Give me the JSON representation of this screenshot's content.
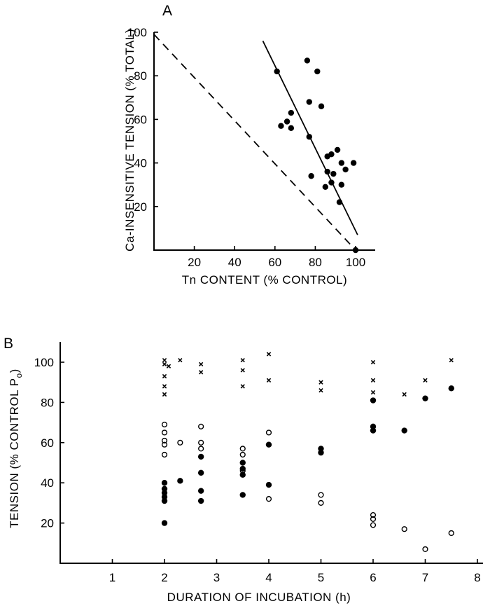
{
  "chart_data": [
    {
      "panel": "A",
      "type": "scatter",
      "xlabel": "Tn CONTENT (% CONTROL)",
      "ylabel": "Ca-INSENSITIVE TENSION (% TOTAL)",
      "xlim": [
        0,
        110
      ],
      "ylim": [
        0,
        100
      ],
      "xticks": [
        20,
        40,
        60,
        80,
        100
      ],
      "yticks": [
        20,
        40,
        60,
        80,
        100
      ],
      "points": [
        [
          61,
          82
        ],
        [
          63,
          57
        ],
        [
          66,
          59
        ],
        [
          68,
          63
        ],
        [
          68,
          56
        ],
        [
          76,
          87
        ],
        [
          77,
          68
        ],
        [
          77,
          52
        ],
        [
          78,
          34
        ],
        [
          81,
          82
        ],
        [
          83,
          66
        ],
        [
          85,
          29
        ],
        [
          86,
          36
        ],
        [
          86,
          43
        ],
        [
          88,
          44
        ],
        [
          88,
          31
        ],
        [
          89,
          35
        ],
        [
          91,
          46
        ],
        [
          92,
          22
        ],
        [
          93,
          30
        ],
        [
          93,
          40
        ],
        [
          95,
          37
        ],
        [
          99,
          40
        ],
        [
          100,
          0
        ]
      ],
      "lines": [
        {
          "style": "solid",
          "x": [
            54,
            101
          ],
          "y": [
            96,
            7
          ]
        },
        {
          "style": "dashed",
          "x": [
            0,
            100
          ],
          "y": [
            99,
            0
          ]
        }
      ]
    },
    {
      "panel": "B",
      "type": "scatter",
      "xlabel": "DURATION OF INCUBATION (h)",
      "ylabel": "TENSION (% CONTROL P",
      "ylabel_subscript": "o",
      "ylabel_close": ")",
      "xlim": [
        0,
        8
      ],
      "ylim": [
        0,
        105
      ],
      "xticks": [
        1,
        2,
        3,
        4,
        5,
        6,
        7,
        8
      ],
      "yticks": [
        20,
        40,
        60,
        80,
        100
      ],
      "series": [
        {
          "marker": "cross",
          "points": [
            [
              2,
              101
            ],
            [
              2,
              99
            ],
            [
              2.08,
              98
            ],
            [
              2,
              93
            ],
            [
              2,
              88
            ],
            [
              2,
              84
            ],
            [
              2.3,
              101
            ],
            [
              2.7,
              99
            ],
            [
              2.7,
              95
            ],
            [
              3.5,
              101
            ],
            [
              3.5,
              96
            ],
            [
              3.5,
              88
            ],
            [
              4,
              104
            ],
            [
              4,
              91
            ],
            [
              5,
              90
            ],
            [
              5,
              86
            ],
            [
              6,
              100
            ],
            [
              6,
              91
            ],
            [
              6,
              85
            ],
            [
              6.6,
              84
            ],
            [
              7,
              91
            ],
            [
              7.5,
              101
            ]
          ]
        },
        {
          "marker": "filled",
          "points": [
            [
              2,
              40
            ],
            [
              2,
              37
            ],
            [
              2,
              35
            ],
            [
              2,
              33
            ],
            [
              2,
              31
            ],
            [
              2,
              20
            ],
            [
              2.3,
              41
            ],
            [
              2.7,
              53
            ],
            [
              2.7,
              45
            ],
            [
              2.7,
              36
            ],
            [
              2.7,
              31
            ],
            [
              3.5,
              50
            ],
            [
              3.5,
              47
            ],
            [
              3.5,
              44
            ],
            [
              3.5,
              34
            ],
            [
              4,
              59
            ],
            [
              4,
              39
            ],
            [
              5,
              57
            ],
            [
              5,
              55
            ],
            [
              6,
              81
            ],
            [
              6,
              68
            ],
            [
              6,
              66
            ],
            [
              6.6,
              66
            ],
            [
              7,
              82
            ],
            [
              7.5,
              87
            ]
          ]
        },
        {
          "marker": "open",
          "points": [
            [
              2,
              69
            ],
            [
              2,
              65
            ],
            [
              2,
              61
            ],
            [
              2,
              59
            ],
            [
              2,
              54
            ],
            [
              2.3,
              60
            ],
            [
              2.7,
              68
            ],
            [
              2.7,
              60
            ],
            [
              2.7,
              57
            ],
            [
              3.5,
              57
            ],
            [
              3.5,
              54
            ],
            [
              3.5,
              46
            ],
            [
              4,
              65
            ],
            [
              4,
              32
            ],
            [
              5,
              34
            ],
            [
              5,
              30
            ],
            [
              6,
              24
            ],
            [
              6,
              22
            ],
            [
              6,
              19
            ],
            [
              6.6,
              17
            ],
            [
              7,
              7
            ],
            [
              7.5,
              15
            ]
          ]
        }
      ]
    }
  ]
}
